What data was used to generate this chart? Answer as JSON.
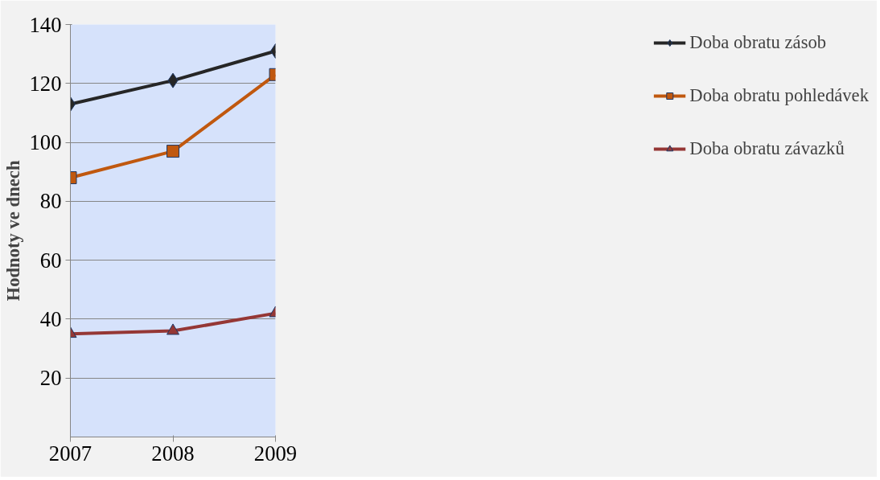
{
  "chart_data": {
    "type": "line",
    "ylabel": "Hodnoty ve dnech",
    "categories": [
      "2007",
      "2008",
      "2009"
    ],
    "ylim": [
      0,
      140
    ],
    "yticks": [
      20,
      40,
      60,
      80,
      100,
      120,
      140
    ],
    "grid": "y",
    "legend": "right",
    "series": [
      {
        "name": "Doba obratu zásob",
        "color": "#262626",
        "marker": "diamond",
        "values": [
          113,
          121,
          131
        ]
      },
      {
        "name": "Doba obratu pohledávek",
        "color": "#c0580f",
        "marker": "square",
        "values": [
          88,
          97,
          123
        ]
      },
      {
        "name": "Doba obratu závazků",
        "color": "#953735",
        "marker": "triangle",
        "values": [
          35,
          36,
          42
        ]
      }
    ]
  }
}
